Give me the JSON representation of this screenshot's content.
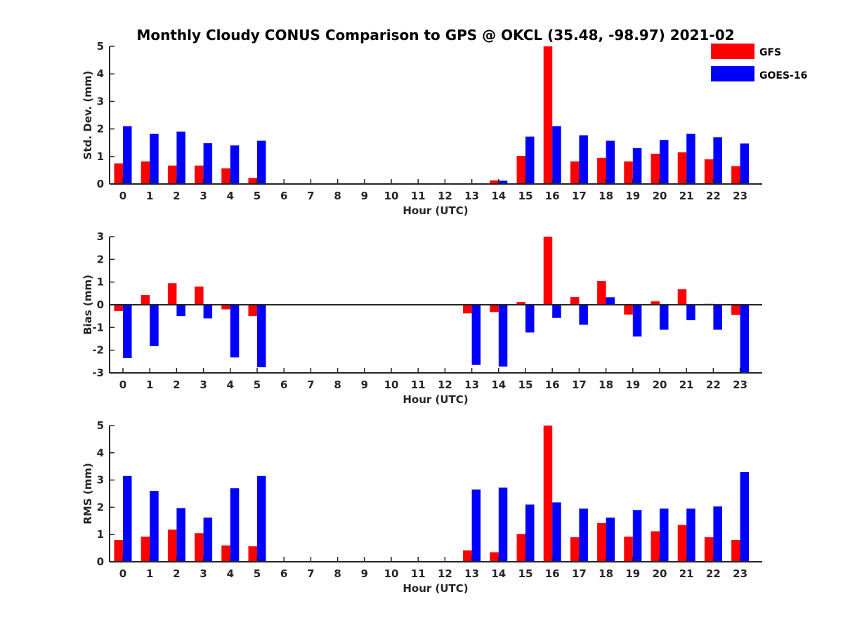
{
  "chart_data": {
    "title": "Monthly Cloudy CONUS Comparison to GPS @ OKCL (35.48, -98.97) 2021-02",
    "type": "bar",
    "legend": {
      "placement": "top-right",
      "entries": [
        {
          "name": "GFS",
          "color": "#ff0000"
        },
        {
          "name": "GOES-16",
          "color": "#0000ff"
        }
      ]
    },
    "panels": [
      {
        "type": "bar",
        "ylabel": "Std. Dev. (mm)",
        "xlabel": "Hour (UTC)",
        "ylim": [
          0,
          5
        ],
        "yticks": [
          "0",
          "1",
          "2",
          "3",
          "4",
          "5"
        ],
        "categories": [
          "0",
          "1",
          "2",
          "3",
          "4",
          "5",
          "6",
          "7",
          "8",
          "9",
          "10",
          "11",
          "12",
          "13",
          "14",
          "15",
          "16",
          "17",
          "18",
          "19",
          "20",
          "21",
          "22",
          "23"
        ],
        "series": [
          {
            "name": "GFS",
            "color": "#ff0000",
            "values": [
              0.75,
              0.82,
              0.67,
              0.67,
              0.57,
              0.22,
              null,
              null,
              null,
              null,
              null,
              null,
              null,
              null,
              0.13,
              1.02,
              5.0,
              0.82,
              0.95,
              0.82,
              1.1,
              1.15,
              0.9,
              0.65
            ]
          },
          {
            "name": "GOES-16",
            "color": "#0000ff",
            "values": [
              2.1,
              1.82,
              1.9,
              1.48,
              1.4,
              1.57,
              null,
              null,
              null,
              null,
              null,
              null,
              null,
              null,
              0.12,
              1.72,
              2.1,
              1.77,
              1.57,
              1.3,
              1.6,
              1.82,
              1.7,
              1.47
            ]
          }
        ]
      },
      {
        "type": "bar",
        "ylabel": "Bias (mm)",
        "xlabel": "Hour (UTC)",
        "ylim": [
          -3,
          3
        ],
        "yticks": [
          "-3",
          "-2",
          "-1",
          "0",
          "1",
          "2",
          "3"
        ],
        "categories": [
          "0",
          "1",
          "2",
          "3",
          "4",
          "5",
          "6",
          "7",
          "8",
          "9",
          "10",
          "11",
          "12",
          "13",
          "14",
          "15",
          "16",
          "17",
          "18",
          "19",
          "20",
          "21",
          "22",
          "23"
        ],
        "series": [
          {
            "name": "GFS",
            "color": "#ff0000",
            "values": [
              -0.28,
              0.43,
              0.95,
              0.8,
              -0.2,
              -0.5,
              null,
              null,
              null,
              null,
              null,
              null,
              null,
              -0.38,
              -0.32,
              0.12,
              3.0,
              0.34,
              1.05,
              -0.43,
              0.15,
              0.68,
              0.04,
              -0.45
            ]
          },
          {
            "name": "GOES-16",
            "color": "#0000ff",
            "values": [
              -2.35,
              -1.82,
              -0.5,
              -0.6,
              -2.32,
              -2.75,
              null,
              null,
              null,
              null,
              null,
              null,
              null,
              -2.65,
              -2.72,
              -1.22,
              -0.58,
              -0.88,
              0.33,
              -1.4,
              -1.1,
              -0.68,
              -1.1,
              -2.97
            ]
          }
        ]
      },
      {
        "type": "bar",
        "ylabel": "RMS (mm)",
        "xlabel": "Hour (UTC)",
        "ylim": [
          0,
          5
        ],
        "yticks": [
          "0",
          "1",
          "2",
          "3",
          "4",
          "5"
        ],
        "categories": [
          "0",
          "1",
          "2",
          "3",
          "4",
          "5",
          "6",
          "7",
          "8",
          "9",
          "10",
          "11",
          "12",
          "13",
          "14",
          "15",
          "16",
          "17",
          "18",
          "19",
          "20",
          "21",
          "22",
          "23"
        ],
        "series": [
          {
            "name": "GFS",
            "color": "#ff0000",
            "values": [
              0.8,
              0.92,
              1.18,
              1.05,
              0.6,
              0.57,
              null,
              null,
              null,
              null,
              null,
              null,
              null,
              0.42,
              0.35,
              1.02,
              5.0,
              0.9,
              1.42,
              0.92,
              1.12,
              1.35,
              0.9,
              0.8
            ]
          },
          {
            "name": "GOES-16",
            "color": "#0000ff",
            "values": [
              3.15,
              2.6,
              1.97,
              1.62,
              2.7,
              3.15,
              null,
              null,
              null,
              null,
              null,
              null,
              null,
              2.65,
              2.72,
              2.1,
              2.18,
              1.95,
              1.62,
              1.9,
              1.95,
              1.95,
              2.03,
              3.3
            ]
          }
        ]
      }
    ]
  }
}
